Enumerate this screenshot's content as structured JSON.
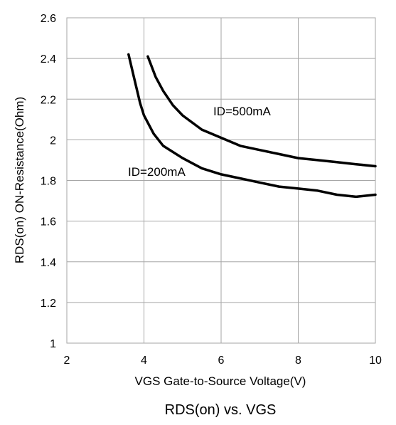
{
  "chart_data": {
    "type": "line",
    "title": "RDS(on) vs. VGS",
    "xlabel": "VGS Gate-to-Source Voltage(V)",
    "ylabel": "RDS(on) ON-Resistance(Ohm)",
    "xlim": [
      2,
      10
    ],
    "ylim": [
      1,
      2.6
    ],
    "xticks": [
      "2",
      "4",
      "6",
      "8",
      "10"
    ],
    "yticks": [
      "1",
      "1.2",
      "1.4",
      "1.6",
      "1.8",
      "2",
      "2.2",
      "2.4",
      "2.6"
    ],
    "xtick_values": [
      2,
      4,
      6,
      8,
      10
    ],
    "ytick_values": [
      1,
      1.2,
      1.4,
      1.6,
      1.8,
      2,
      2.2,
      2.4,
      2.6
    ],
    "grid": true,
    "series": [
      {
        "name": "ID=500mA",
        "x": [
          4.1,
          4.3,
          4.5,
          4.75,
          5.0,
          5.5,
          6.0,
          6.5,
          7.0,
          7.5,
          8.0,
          8.5,
          9.0,
          9.5,
          10.0
        ],
        "y": [
          2.41,
          2.31,
          2.24,
          2.17,
          2.12,
          2.05,
          2.01,
          1.97,
          1.95,
          1.93,
          1.91,
          1.9,
          1.89,
          1.88,
          1.87
        ]
      },
      {
        "name": "ID=200mA",
        "x": [
          3.6,
          3.75,
          3.9,
          4.0,
          4.25,
          4.5,
          5.0,
          5.5,
          6.0,
          6.5,
          7.0,
          7.5,
          8.0,
          8.5,
          9.0,
          9.5,
          10.0
        ],
        "y": [
          2.42,
          2.3,
          2.18,
          2.12,
          2.03,
          1.97,
          1.91,
          1.86,
          1.83,
          1.81,
          1.79,
          1.77,
          1.76,
          1.75,
          1.73,
          1.72,
          1.73
        ]
      }
    ]
  }
}
